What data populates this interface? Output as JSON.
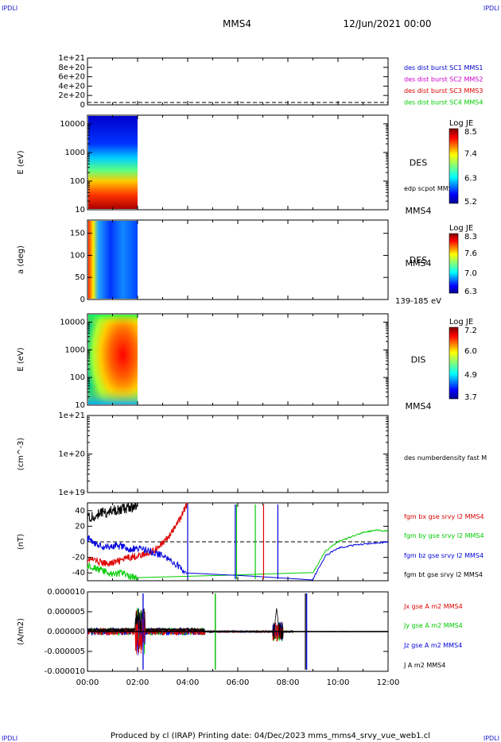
{
  "header": {
    "corner_tl": "IPDLI",
    "corner_tr": "IPDLI",
    "corner_bl": "IPDLI",
    "corner_br": "IPDLI",
    "spacecraft": "MMS4",
    "datetime": "12/Jun/2021 00:00"
  },
  "footer": {
    "text": "Produced by cl (IRAP)   Printing date: 04/Dec/2023   mms_mms4_srvy_vue_web1.cl"
  },
  "colors": {
    "mms1": "#0000cc",
    "mms2": "#cc00cc",
    "mms3": "#dd0000",
    "mms4": "#00cc00",
    "bx": "#dd0000",
    "by": "#00cc00",
    "bz": "#0000dd",
    "bt": "#000000"
  },
  "chart_data": [
    {
      "type": "line",
      "panel": "des-dist-burst",
      "ylim": [
        0,
        1e+21
      ],
      "y_ticks": [
        "0",
        "2e+20",
        "4e+20",
        "6e+20",
        "8e+20",
        "1e+21"
      ],
      "reference_line_y": 0,
      "series": [
        {
          "name": "des dist burst SC1 MMS1",
          "color": "#0000cc"
        },
        {
          "name": "des dist burst SC2 MMS2",
          "color": "#cc00cc"
        },
        {
          "name": "des dist burst SC3 MMS3",
          "color": "#dd0000"
        },
        {
          "name": "des dist burst SC4 MMS4",
          "color": "#00cc00"
        }
      ]
    },
    {
      "type": "heatmap",
      "panel": "des-energy",
      "ylabel": "E (eV)",
      "yscale": "log",
      "ylim": [
        10,
        20000
      ],
      "y_ticks": [
        "10",
        "100",
        "1000",
        "10000"
      ],
      "x_data_range": [
        "00:00",
        "02:00"
      ],
      "label": "DES",
      "label2": "MMS4",
      "extra_label": "edp scpot MMS4",
      "colorbar": {
        "title": "Log JE",
        "ticks": [
          "5.2",
          "6.3",
          "7.4",
          "8.5"
        ]
      }
    },
    {
      "type": "heatmap",
      "panel": "des-pitch",
      "ylabel": "a (deg)",
      "ylim": [
        0,
        180
      ],
      "y_ticks": [
        "0",
        "50",
        "100",
        "150"
      ],
      "x_data_range": [
        "00:00",
        "02:00"
      ],
      "label": "DES",
      "label2": "MMS4",
      "extra_label": "139-185 eV",
      "colorbar": {
        "title": "Log JE",
        "ticks": [
          "6.3",
          "7.0",
          "7.6",
          "8.3"
        ]
      }
    },
    {
      "type": "heatmap",
      "panel": "dis-energy",
      "ylabel": "E (eV)",
      "yscale": "log",
      "ylim": [
        10,
        20000
      ],
      "y_ticks": [
        "10",
        "100",
        "1000",
        "10000"
      ],
      "x_data_range": [
        "00:00",
        "02:00"
      ],
      "label": "DIS",
      "label2": "MMS4",
      "colorbar": {
        "title": "Log JE",
        "ticks": [
          "3.7",
          "4.9",
          "6.0",
          "7.2"
        ]
      }
    },
    {
      "type": "line",
      "panel": "des-numberdensity",
      "ylabel": "(cm^-3)",
      "yscale": "log",
      "ylim": [
        1e+19,
        1e+21
      ],
      "y_ticks": [
        "1e+19",
        "1e+20",
        "1e+21"
      ],
      "series": [
        {
          "name": "des numberdensity fast M",
          "color": "#000000"
        }
      ]
    },
    {
      "type": "line",
      "panel": "fgm",
      "ylabel": "(nT)",
      "ylim": [
        -50,
        50
      ],
      "y_ticks": [
        "-40",
        "-20",
        "0",
        "20",
        "40"
      ],
      "reference_line_y": 0,
      "series": [
        {
          "name": "fgm bx gse srvy l2 MMS4",
          "color": "#dd0000",
          "x": [
            "00:00",
            "00:20",
            "00:40",
            "01:00",
            "01:20",
            "01:40",
            "02:00",
            "02:20",
            "02:40",
            "03:00",
            "03:20",
            "03:40",
            "04:00"
          ],
          "y": [
            -22,
            -24,
            -28,
            -27,
            -24,
            -20,
            -18,
            -16,
            -10,
            -2,
            10,
            28,
            50
          ]
        },
        {
          "name": "fgm by gse srvy l2 MMS4",
          "color": "#00cc00",
          "x": [
            "00:00",
            "00:20",
            "00:40",
            "01:00",
            "01:20",
            "01:40",
            "02:00",
            "09:00",
            "09:30",
            "10:00",
            "10:30",
            "11:00",
            "11:30",
            "12:00"
          ],
          "y": [
            -30,
            -34,
            -38,
            -42,
            -40,
            -44,
            -46,
            -40,
            -12,
            0,
            6,
            12,
            15,
            14
          ]
        },
        {
          "name": "fgm bz gse srvy l2 MMS4",
          "color": "#0000dd",
          "x": [
            "00:00",
            "00:20",
            "00:40",
            "01:00",
            "01:20",
            "01:40",
            "02:00",
            "02:30",
            "03:00",
            "03:30",
            "04:00",
            "09:00",
            "09:30",
            "10:00",
            "10:30",
            "11:00",
            "11:30",
            "12:00"
          ],
          "y": [
            5,
            -2,
            -8,
            -5,
            -6,
            -10,
            -8,
            -12,
            -18,
            -28,
            -40,
            -48,
            -18,
            -8,
            -5,
            -3,
            -2,
            0
          ]
        },
        {
          "name": "fgm bt gse srvy l2 MMS4",
          "color": "#000000",
          "x": [
            "00:00",
            "00:20",
            "00:40",
            "01:00",
            "01:20",
            "01:40",
            "02:00"
          ],
          "y": [
            30,
            34,
            38,
            40,
            42,
            44,
            45
          ]
        }
      ]
    },
    {
      "type": "line",
      "panel": "current-density",
      "ylabel": "(A/m2)",
      "ylim": [
        -1e-05,
        1e-05
      ],
      "y_ticks": [
        "-0.000010",
        "-0.000005",
        "0.000000",
        "0.000005",
        "0.000010"
      ],
      "xlim": [
        "00:00",
        "12:00"
      ],
      "x_ticks": [
        "00:00",
        "02:00",
        "04:00",
        "06:00",
        "08:00",
        "10:00",
        "12:00"
      ],
      "series": [
        {
          "name": "Jx gse A m2 MMS4",
          "color": "#dd0000"
        },
        {
          "name": "Jy gse A m2 MMS4",
          "color": "#00cc00"
        },
        {
          "name": "Jz gse A m2 MMS4",
          "color": "#0000dd"
        },
        {
          "name": "J A m2 MMS4",
          "color": "#000000"
        }
      ]
    }
  ]
}
